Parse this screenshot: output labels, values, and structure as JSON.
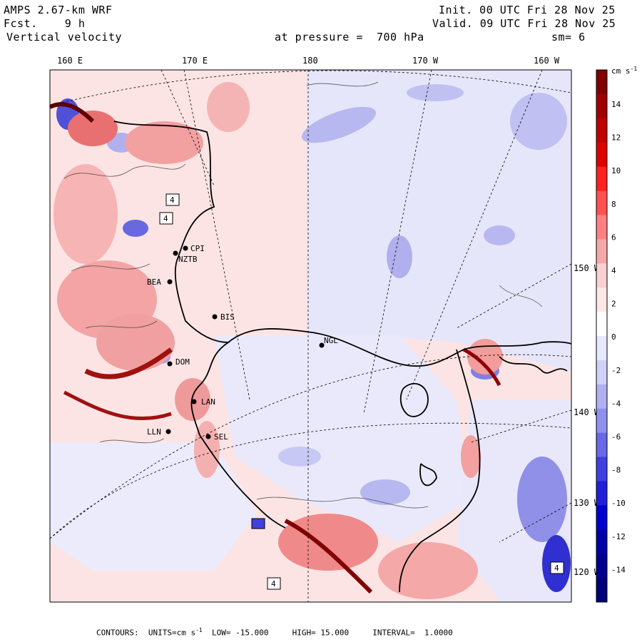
{
  "header": {
    "model": "AMPS 2.67-km WRF",
    "fcst_label": "Fcst.",
    "fcst_value": "9 h",
    "field": "Vertical velocity",
    "init": "Init. 00 UTC Fri 28 Nov 25",
    "valid": "Valid. 09 UTC Fri 28 Nov 25",
    "pressure": "at pressure =  700 hPa",
    "smooth": "sm= 6"
  },
  "axes": {
    "top_longitudes": [
      "160 E",
      "170 E",
      "180",
      "170 W",
      "160 W"
    ],
    "right_longitudes": [
      "150 W",
      "140 W",
      "130 W",
      "120 W"
    ]
  },
  "stations": [
    "CPI",
    "NZTB",
    "BEA",
    "BIS",
    "NGL",
    "DOM",
    "LAN",
    "LLN",
    "SEL"
  ],
  "box_markers": [
    "4",
    "4",
    "4",
    "4"
  ],
  "colorbar": {
    "units": "cm s",
    "units_sup": "-1",
    "tick_labels": [
      "14",
      "12",
      "10",
      "8",
      "6",
      "4",
      "2",
      "0",
      "-2",
      "-4",
      "-6",
      "-8",
      "-10",
      "-12",
      "-14"
    ],
    "colors": [
      "#800000",
      "#a00000",
      "#c00000",
      "#e00000",
      "#ff2020",
      "#ff5050",
      "#ff8080",
      "#f5a8a8",
      "#fad0d0",
      "#fde8e8",
      "#ffffff",
      "#e8e8ff",
      "#d0d0f8",
      "#b0b0f0",
      "#9090ee",
      "#6868e8",
      "#4040e0",
      "#2020d8",
      "#0000d0",
      "#0000a8",
      "#000090",
      "#000078"
    ]
  },
  "footer": {
    "contours": "CONTOURS:",
    "units": "UNITS=cm s",
    "units_sup": "-1",
    "low": "LOW= -15.000",
    "high": "HIGH= 15.000",
    "interval": "INTERVAL=  1.0000"
  }
}
